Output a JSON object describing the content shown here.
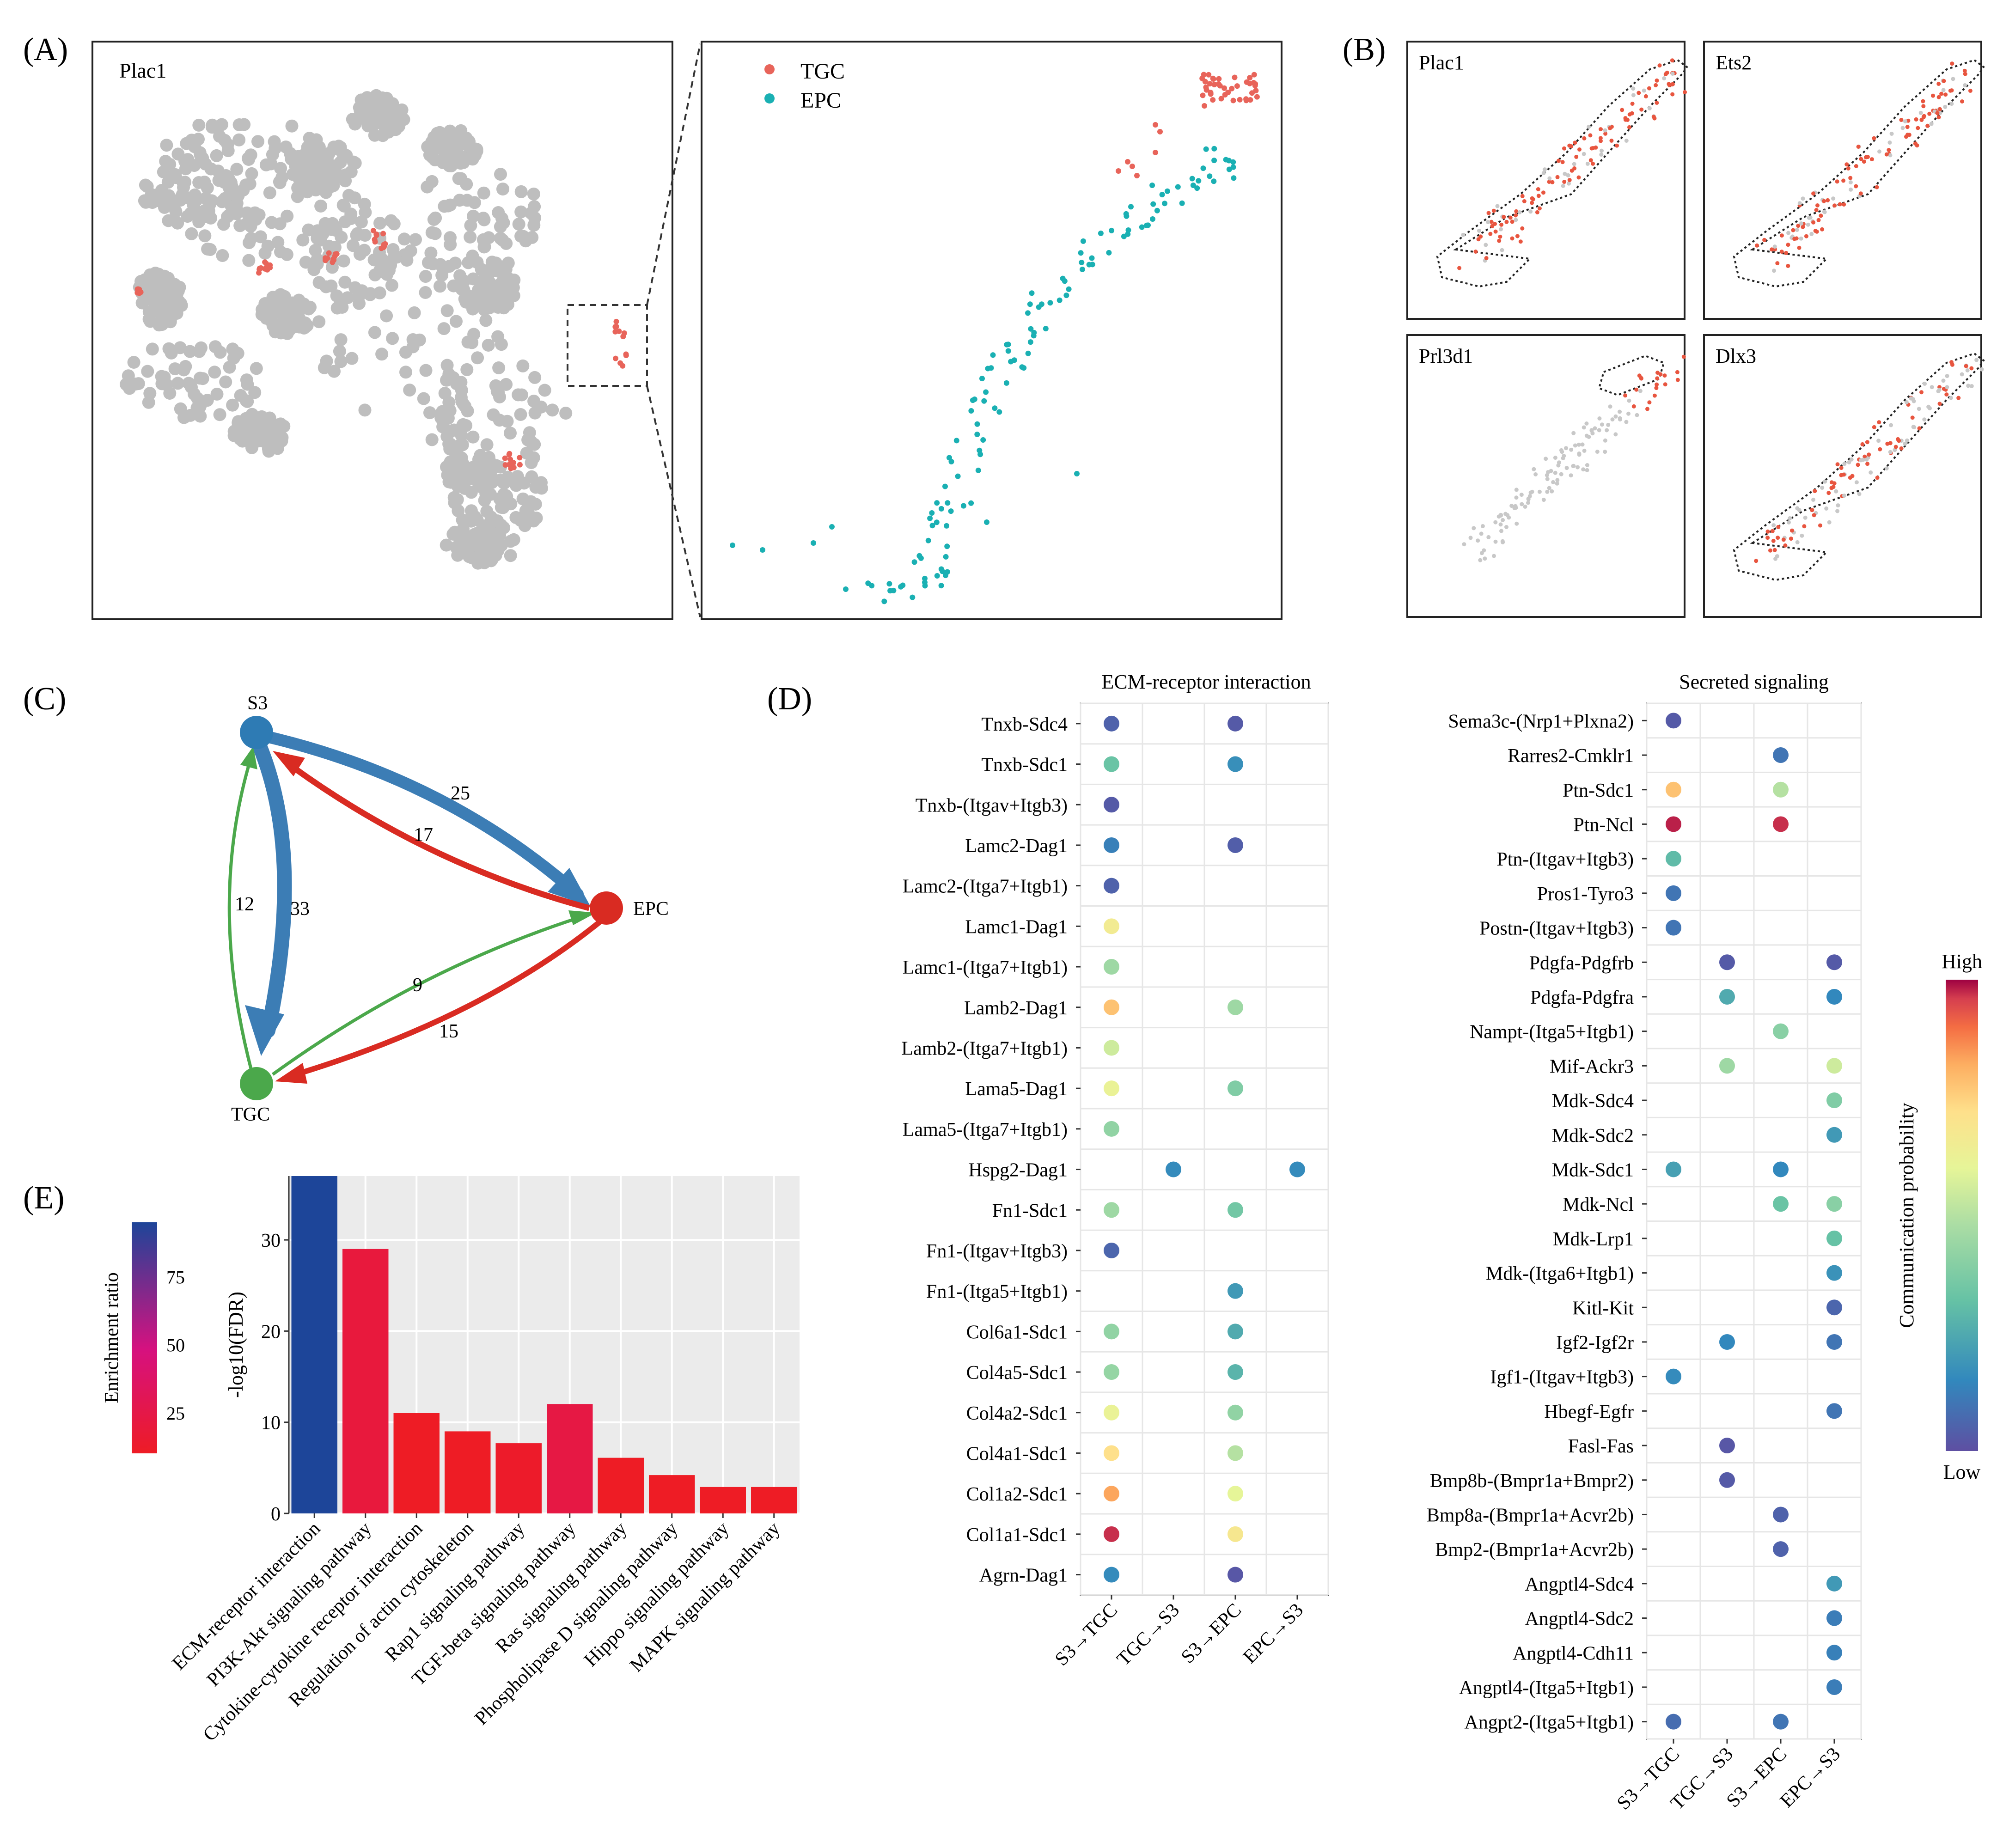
{
  "panels": {
    "A": "(A)",
    "B": "(B)",
    "C": "(C)",
    "D": "(D)",
    "E": "(E)"
  },
  "panel_a": {
    "tsne_title": "Plac1",
    "legend": [
      {
        "label": "TGC",
        "color": "#E8645A"
      },
      {
        "label": "EPC",
        "color": "#1AB0B3"
      }
    ],
    "background_color": "#BEBEBE"
  },
  "panel_b": {
    "genes": [
      "Plac1",
      "Ets2",
      "Prl3d1",
      "Dlx3"
    ]
  },
  "panel_c": {
    "nodes": [
      {
        "id": "S3",
        "label": "S3",
        "color": "#2E7BB4"
      },
      {
        "id": "EPC",
        "label": "EPC",
        "color": "#D92B22"
      },
      {
        "id": "TGC",
        "label": "TGC",
        "color": "#4BA84B"
      }
    ],
    "edges": [
      {
        "from": "S3",
        "to": "EPC",
        "weight": 25,
        "label": "25",
        "color": "#3C7DB5"
      },
      {
        "from": "EPC",
        "to": "S3",
        "weight": 17,
        "label": "17",
        "color": "#D92B22"
      },
      {
        "from": "S3",
        "to": "TGC",
        "weight": 33,
        "label": "33",
        "color": "#3C7DB5"
      },
      {
        "from": "TGC",
        "to": "S3",
        "weight": 12,
        "label": "12",
        "color": "#4BA84B"
      },
      {
        "from": "TGC",
        "to": "EPC",
        "weight": 9,
        "label": "9",
        "color": "#4BA84B"
      },
      {
        "from": "EPC",
        "to": "TGC",
        "weight": 15,
        "label": "15",
        "color": "#D92B22"
      }
    ]
  },
  "panel_d": {
    "ecm_title": "ECM-receptor interaction",
    "sec_title": "Secreted signaling",
    "x_categories": [
      "S3→TGC",
      "TGC→S3",
      "S3→EPC",
      "EPC→S3"
    ],
    "legend_title": "Communication probability",
    "legend_high": "High",
    "legend_low": "Low"
  },
  "chart_data": [
    {
      "type": "scatter",
      "title": "ECM-receptor interaction",
      "note": "dot plot, values are communication probability on a 0 (Low) to 1 (High) scale",
      "x": [
        "S3→TGC",
        "TGC→S3",
        "S3→EPC",
        "EPC→S3"
      ],
      "rows": [
        {
          "pair": "Tnxb-Sdc4",
          "values": [
            0.05,
            null,
            0.03,
            null
          ]
        },
        {
          "pair": "Tnxb-Sdc1",
          "values": [
            0.33,
            null,
            0.17,
            null
          ]
        },
        {
          "pair": "Tnxb-(Itgav+Itgb3)",
          "values": [
            0.03,
            null,
            null,
            null
          ]
        },
        {
          "pair": "Lamc2-Dag1",
          "values": [
            0.13,
            null,
            0.04,
            null
          ]
        },
        {
          "pair": "Lamc2-(Itga7+Itgb1)",
          "values": [
            0.05,
            null,
            null,
            null
          ]
        },
        {
          "pair": "Lamc1-Dag1",
          "values": [
            0.66,
            null,
            null,
            null
          ]
        },
        {
          "pair": "Lamc1-(Itga7+Itgb1)",
          "values": [
            0.45,
            null,
            null,
            null
          ]
        },
        {
          "pair": "Lamb2-Dag1",
          "values": [
            0.78,
            null,
            0.45,
            null
          ]
        },
        {
          "pair": "Lamb2-(Itga7+Itgb1)",
          "values": [
            0.55,
            null,
            null,
            null
          ]
        },
        {
          "pair": "Lama5-Dag1",
          "values": [
            0.62,
            null,
            0.38,
            null
          ]
        },
        {
          "pair": "Lama5-(Itga7+Itgb1)",
          "values": [
            0.42,
            null,
            null,
            null
          ]
        },
        {
          "pair": "Hspg2-Dag1",
          "values": [
            null,
            0.16,
            null,
            0.16
          ]
        },
        {
          "pair": "Fn1-Sdc1",
          "values": [
            0.45,
            null,
            0.35,
            null
          ]
        },
        {
          "pair": "Fn1-(Itgav+Itgb3)",
          "values": [
            0.06,
            null,
            null,
            null
          ]
        },
        {
          "pair": "Fn1-(Itga5+Itgb1)",
          "values": [
            null,
            null,
            0.2,
            null
          ]
        },
        {
          "pair": "Col6a1-Sdc1",
          "values": [
            0.42,
            null,
            0.25,
            null
          ]
        },
        {
          "pair": "Col4a5-Sdc1",
          "values": [
            0.43,
            null,
            0.28,
            null
          ]
        },
        {
          "pair": "Col4a2-Sdc1",
          "values": [
            0.62,
            null,
            0.42,
            null
          ]
        },
        {
          "pair": "Col4a1-Sdc1",
          "values": [
            0.72,
            null,
            0.5,
            null
          ]
        },
        {
          "pair": "Col1a2-Sdc1",
          "values": [
            0.83,
            null,
            0.6,
            null
          ]
        },
        {
          "pair": "Col1a1-Sdc1",
          "values": [
            0.97,
            null,
            0.68,
            null
          ]
        },
        {
          "pair": "Agrn-Dag1",
          "values": [
            0.16,
            null,
            0.02,
            null
          ]
        }
      ]
    },
    {
      "type": "scatter",
      "title": "Secreted signaling",
      "note": "dot plot, values are communication probability on a 0 (Low) to 1 (High) scale",
      "x": [
        "S3→TGC",
        "TGC→S3",
        "S3→EPC",
        "EPC→S3"
      ],
      "rows": [
        {
          "pair": "Sema3c-(Nrp1+Plxna2)",
          "values": [
            0.03,
            null,
            null,
            null
          ]
        },
        {
          "pair": "Rarres2-Cmklr1",
          "values": [
            null,
            null,
            0.1,
            null
          ]
        },
        {
          "pair": "Ptn-Sdc1",
          "values": [
            0.78,
            null,
            0.5,
            null
          ]
        },
        {
          "pair": "Ptn-Ncl",
          "values": [
            0.98,
            null,
            0.97,
            null
          ]
        },
        {
          "pair": "Ptn-(Itgav+Itgb3)",
          "values": [
            0.3,
            null,
            null,
            null
          ]
        },
        {
          "pair": "Pros1-Tyro3",
          "values": [
            0.1,
            null,
            null,
            null
          ]
        },
        {
          "pair": "Postn-(Itgav+Itgb3)",
          "values": [
            0.1,
            null,
            null,
            null
          ]
        },
        {
          "pair": "Pdgfa-Pdgfrb",
          "values": [
            null,
            0.03,
            null,
            0.03
          ]
        },
        {
          "pair": "Pdgfa-Pdgfra",
          "values": [
            null,
            0.25,
            null,
            0.15
          ]
        },
        {
          "pair": "Nampt-(Itga5+Itgb1)",
          "values": [
            null,
            null,
            0.4,
            null
          ]
        },
        {
          "pair": "Mif-Ackr3",
          "values": [
            null,
            0.45,
            null,
            0.55
          ]
        },
        {
          "pair": "Mdk-Sdc4",
          "values": [
            null,
            null,
            null,
            0.38
          ]
        },
        {
          "pair": "Mdk-Sdc2",
          "values": [
            null,
            null,
            null,
            0.2
          ]
        },
        {
          "pair": "Mdk-Sdc1",
          "values": [
            0.22,
            null,
            0.15,
            null
          ]
        },
        {
          "pair": "Mdk-Ncl",
          "values": [
            null,
            null,
            0.33,
            0.4
          ]
        },
        {
          "pair": "Mdk-Lrp1",
          "values": [
            null,
            null,
            null,
            0.32
          ]
        },
        {
          "pair": "Mdk-(Itga6+Itgb1)",
          "values": [
            null,
            null,
            null,
            0.18
          ]
        },
        {
          "pair": "Kitl-Kit",
          "values": [
            null,
            null,
            null,
            0.06
          ]
        },
        {
          "pair": "Igf2-Igf2r",
          "values": [
            null,
            0.15,
            null,
            0.1
          ]
        },
        {
          "pair": "Igf1-(Itgav+Itgb3)",
          "values": [
            0.16,
            null,
            null,
            null
          ]
        },
        {
          "pair": "Hbegf-Egfr",
          "values": [
            null,
            null,
            null,
            0.1
          ]
        },
        {
          "pair": "Fasl-Fas",
          "values": [
            null,
            0.02,
            null,
            null
          ]
        },
        {
          "pair": "Bmp8b-(Bmpr1a+Bmpr2)",
          "values": [
            null,
            0.03,
            null,
            null
          ]
        },
        {
          "pair": "Bmp8a-(Bmpr1a+Acvr2b)",
          "values": [
            null,
            null,
            0.05,
            null
          ]
        },
        {
          "pair": "Bmp2-(Bmpr1a+Acvr2b)",
          "values": [
            null,
            null,
            0.05,
            null
          ]
        },
        {
          "pair": "Angptl4-Sdc4",
          "values": [
            null,
            null,
            null,
            0.2
          ]
        },
        {
          "pair": "Angptl4-Sdc2",
          "values": [
            null,
            null,
            null,
            0.12
          ]
        },
        {
          "pair": "Angptl4-Cdh11",
          "values": [
            null,
            null,
            null,
            0.13
          ]
        },
        {
          "pair": "Angptl4-(Itga5+Itgb1)",
          "values": [
            null,
            null,
            null,
            0.12
          ]
        },
        {
          "pair": "Angpt2-(Itga5+Itgb1)",
          "values": [
            0.08,
            null,
            0.1,
            null
          ]
        }
      ]
    },
    {
      "type": "bar",
      "categories": [
        "ECM-receptor interaction",
        "PI3K-Akt signaling pathway",
        "Cytokine-cytokine receptor interaction",
        "Regulation of actin cytoskeleton",
        "Rap1 signaling pathway",
        "TGF-beta signaling pathway",
        "Ras signaling pathway",
        "Phospholipase D signaling pathway",
        "Hippo signaling pathway",
        "MAPK signaling pathway"
      ],
      "values": [
        37,
        29,
        11,
        9,
        7.7,
        12,
        6.1,
        4.2,
        2.9,
        2.9
      ],
      "fill_enrichment_ratio": [
        95,
        20,
        10,
        10,
        12,
        23,
        8,
        9,
        9,
        8
      ],
      "ylabel": "-log10(FDR)",
      "ylim": [
        0,
        37
      ],
      "yticks": [
        0,
        10,
        20,
        30
      ],
      "legend_title": "Enrichment ratio",
      "legend_ticks": [
        25,
        50,
        75
      ],
      "grid": true
    }
  ]
}
